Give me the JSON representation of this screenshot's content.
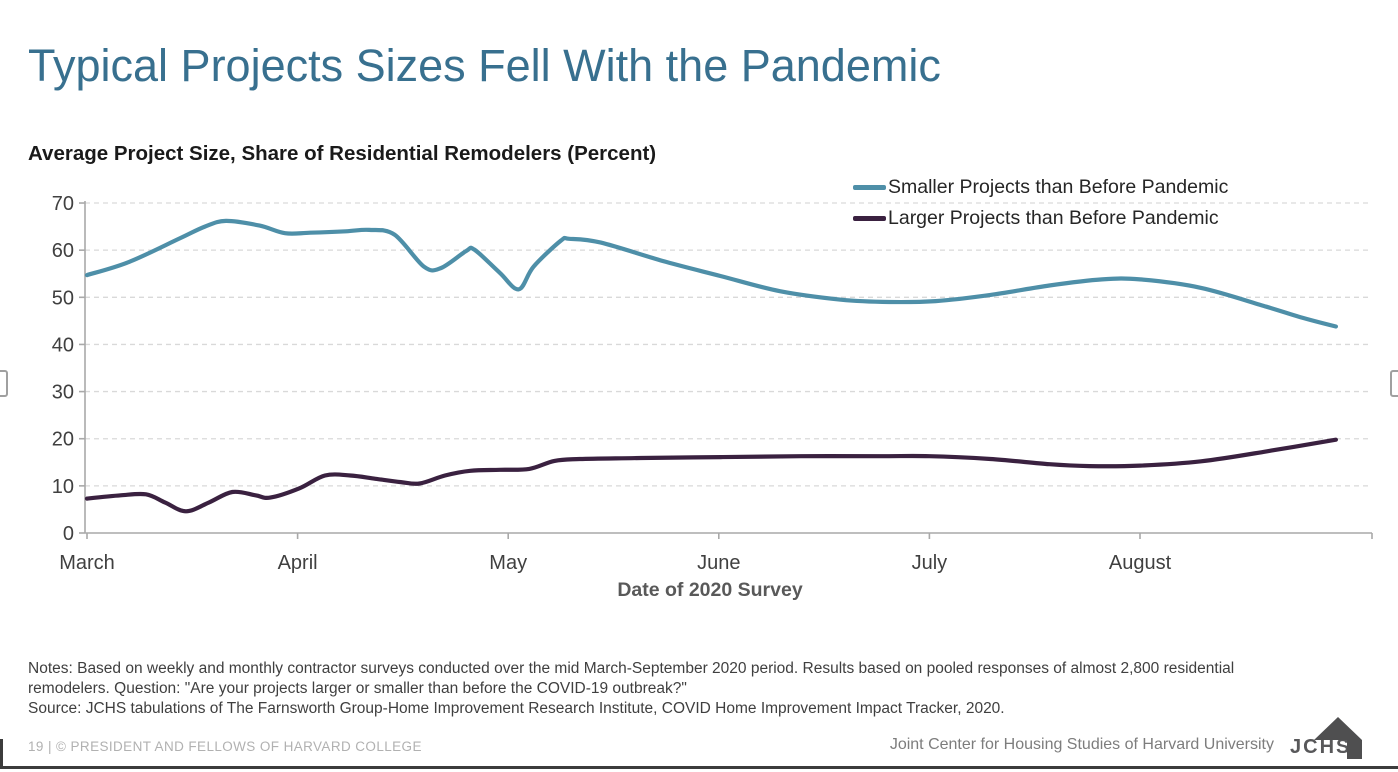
{
  "slide": {
    "title": "Typical Projects Sizes Fell With the Pandemic"
  },
  "colors": {
    "title_accent": "#38708f",
    "smaller_series": "#4e8fa8",
    "larger_series": "#3a2140",
    "gridline": "#d9d9d9",
    "axis": "#a9a9a9"
  },
  "chart_data": {
    "type": "line",
    "title": "Average Project Size, Share of Residential Remodelers (Percent)",
    "xlabel": "Date of 2020 Survey",
    "ylabel": "",
    "ylim": [
      0,
      70
    ],
    "yticks": [
      0,
      10,
      20,
      30,
      40,
      50,
      60,
      70
    ],
    "x_categories": [
      "March",
      "April",
      "May",
      "June",
      "July",
      "August"
    ],
    "x_unit": "months from March (fractional = weekly surveys)",
    "grid": "horizontal-dashed",
    "legend_position": "top-right",
    "series": [
      {
        "name": "Smaller Projects than Before Pandemic",
        "color": "#4e8fa8",
        "x": [
          0,
          0.2,
          0.44,
          0.56,
          0.66,
          0.82,
          0.94,
          1.06,
          1.23,
          1.34,
          1.46,
          1.6,
          1.68,
          1.8,
          1.84,
          1.96,
          2.05,
          2.12,
          2.25,
          2.29,
          2.44,
          2.75,
          3.01,
          3.29,
          3.58,
          3.81,
          4.03,
          4.29,
          4.57,
          4.82,
          5.0,
          5.29,
          5.6,
          5.76,
          5.93
        ],
        "values": [
          54.7,
          57.5,
          62.5,
          65.0,
          66.2,
          65.2,
          63.6,
          63.7,
          64.0,
          64.3,
          63.3,
          56.5,
          56.2,
          59.8,
          60.1,
          55.2,
          51.7,
          56.5,
          62.0,
          62.4,
          61.6,
          57.5,
          54.5,
          51.3,
          49.5,
          49.0,
          49.2,
          50.5,
          52.5,
          53.8,
          53.8,
          52.0,
          48.0,
          45.8,
          43.8
        ]
      },
      {
        "name": "Larger Projects than Before Pandemic",
        "color": "#3a2140",
        "x": [
          0,
          0.16,
          0.28,
          0.37,
          0.47,
          0.58,
          0.69,
          0.8,
          0.87,
          1.01,
          1.13,
          1.25,
          1.37,
          1.49,
          1.58,
          1.7,
          1.82,
          1.96,
          2.1,
          2.22,
          2.34,
          2.63,
          3.01,
          3.39,
          3.77,
          4.0,
          4.29,
          4.57,
          4.76,
          5.0,
          5.29,
          5.6,
          5.93
        ],
        "values": [
          7.3,
          8.0,
          8.2,
          6.5,
          4.6,
          6.5,
          8.7,
          8.0,
          7.5,
          9.5,
          12.2,
          12.2,
          11.5,
          10.8,
          10.5,
          12.2,
          13.2,
          13.4,
          13.6,
          15.3,
          15.7,
          15.9,
          16.1,
          16.3,
          16.3,
          16.3,
          15.7,
          14.6,
          14.2,
          14.3,
          15.2,
          17.3,
          19.8
        ]
      }
    ]
  },
  "notes": {
    "text": "Notes: Based on weekly and monthly contractor surveys conducted over the mid March-September 2020 period. Results based on pooled responses of almost 2,800 residential remodelers. Question: \"Are your projects larger or smaller than before the COVID-19 outbreak?\"",
    "source": "Source: JCHS tabulations of The Farnsworth Group-Home Improvement Research Institute, COVID Home Improvement Impact Tracker, 2020."
  },
  "footer": {
    "left": "19 | © PRESIDENT AND FELLOWS OF HARVARD COLLEGE",
    "right": "Joint Center for Housing Studies of Harvard University",
    "logo_text": "JCHS"
  }
}
